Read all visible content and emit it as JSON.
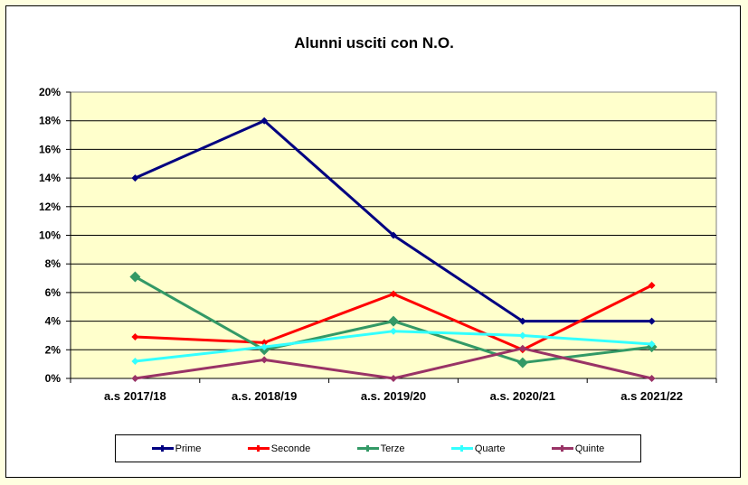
{
  "chart_data": {
    "type": "line",
    "title": "Alunni usciti con N.O.",
    "xlabel": "",
    "ylabel": "",
    "ylim": [
      0,
      20
    ],
    "y_format": "percent",
    "y_ticks": [
      "0%",
      "2%",
      "4%",
      "6%",
      "8%",
      "10%",
      "12%",
      "14%",
      "16%",
      "18%",
      "20%"
    ],
    "grid": true,
    "legend_position": "bottom",
    "categories": [
      "a.s  2017/18",
      "a.s. 2018/19",
      "a.s. 2019/20",
      "a.s. 2020/21",
      "a.s  2021/22"
    ],
    "series": [
      {
        "name": "Prime",
        "color": "#000080",
        "values": [
          14,
          18,
          10,
          4,
          4
        ]
      },
      {
        "name": "Seconde",
        "color": "#ff0000",
        "values": [
          2.9,
          2.5,
          5.9,
          2.0,
          6.5
        ]
      },
      {
        "name": "Terze",
        "color": "#339966",
        "values": [
          7.1,
          2.0,
          4.0,
          1.1,
          2.2
        ]
      },
      {
        "name": "Quarte",
        "color": "#33ffff",
        "values": [
          1.2,
          2.2,
          3.3,
          3.0,
          2.4
        ]
      },
      {
        "name": "Quinte",
        "color": "#993366",
        "values": [
          0,
          1.3,
          0,
          2.1,
          0
        ]
      }
    ]
  },
  "colors": {
    "page_background": "#ffffe0",
    "plot_background": "#ffffcc",
    "frame_background": "#ffffff"
  }
}
